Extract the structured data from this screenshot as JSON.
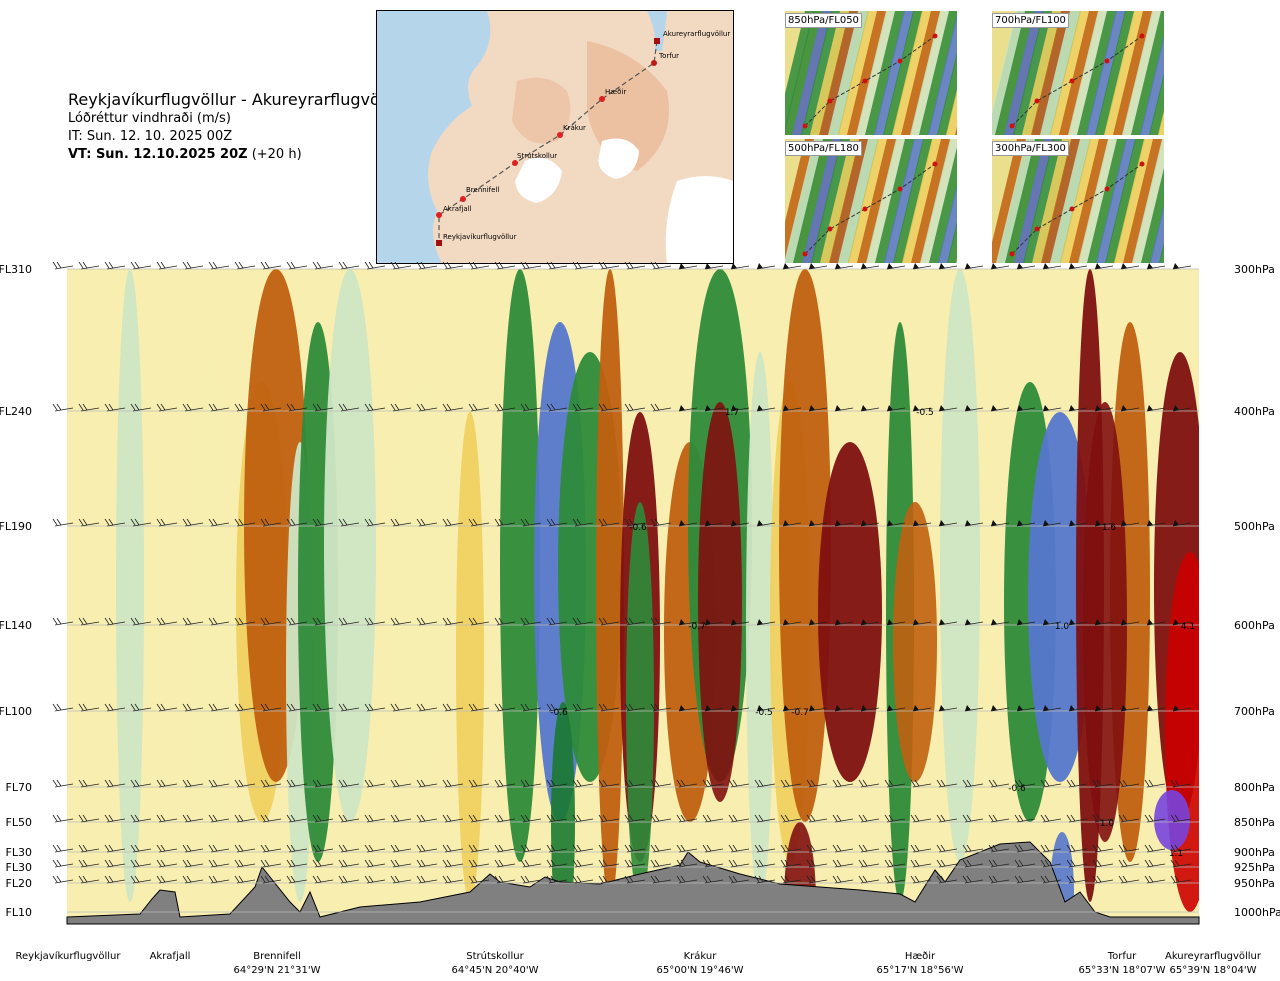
{
  "header": {
    "title": "Reykjavíkurflugvöllur - Akureyrarflugvöllur",
    "subtitle": "Lóðréttur vindhraði (m/s)",
    "it": "IT: Sun. 12. 10. 2025 00Z",
    "vt_bold": "VT: Sun. 12.10.2025 20Z",
    "vt_rest": " (+20 h)"
  },
  "map": {
    "points": [
      {
        "name": "Akureyrarflugvöllur"
      },
      {
        "name": "Torfur"
      },
      {
        "name": "Hæðir"
      },
      {
        "name": "Krákur"
      },
      {
        "name": "Strútskollur"
      },
      {
        "name": "Brennifell"
      },
      {
        "name": "Akrafjall"
      },
      {
        "name": "Reykjavíkurflugvöllur"
      }
    ]
  },
  "thumbnails": [
    {
      "label": "850hPa/FL050"
    },
    {
      "label": "700hPa/FL100"
    },
    {
      "label": "500hPa/FL180"
    },
    {
      "label": "300hPa/FL300"
    }
  ],
  "colors": {
    "strong_down": "#7f1010",
    "down": "#c06010",
    "weak_down": "#f0d060",
    "neutral": "#f7eeb0",
    "weak_up": "#cfe5c4",
    "up": "#2e8b3a",
    "strong_up": "#5577cc",
    "terrain": "#808080"
  },
  "chart_data": {
    "type": "heatmap",
    "title": "Reykjavíkurflugvöllur - Akureyrarflugvöllur",
    "variable": "Lóðréttur vindhraði (m/s)",
    "y_axis_left": [
      "FL310",
      "FL240",
      "FL190",
      "FL140",
      "FL100",
      "FL70",
      "FL50",
      "FL30",
      "FL30",
      "FL20",
      "FL10"
    ],
    "y_axis_right": [
      "300hPa",
      "400hPa",
      "500hPa",
      "600hPa",
      "700hPa",
      "800hPa",
      "850hPa",
      "900hPa",
      "925hPa",
      "950hPa",
      "1000hPa"
    ],
    "pressure_levels_hpa": [
      300,
      400,
      500,
      600,
      700,
      800,
      850,
      900,
      925,
      950,
      1000
    ],
    "x_labels": [
      {
        "name": "Reykjavíkurflugvöllur",
        "coord": ""
      },
      {
        "name": "Akrafjall",
        "coord": ""
      },
      {
        "name": "Brennifell",
        "coord": "64°29'N 21°31'W"
      },
      {
        "name": "Strútskollur",
        "coord": "64°45'N 20°40'W"
      },
      {
        "name": "Krákur",
        "coord": "65°00'N 19°46'W"
      },
      {
        "name": "Hæðir",
        "coord": "65°17'N 18°56'W"
      },
      {
        "name": "Torfur",
        "coord": "65°33'N 18°07'W"
      },
      {
        "name": "Akureyrarflugvöllur",
        "coord": "65°39'N 18°04'W"
      }
    ],
    "annotations": [
      {
        "text": "1.7",
        "level_hpa": 400
      },
      {
        "text": "-0.5",
        "level_hpa": 400
      },
      {
        "text": "-0.6",
        "level_hpa": 500
      },
      {
        "text": "1.6",
        "level_hpa": 500
      },
      {
        "text": "-0.7",
        "level_hpa": 600
      },
      {
        "text": "1.0",
        "level_hpa": 600
      },
      {
        "text": "4.1",
        "level_hpa": 600
      },
      {
        "text": "-0.6",
        "level_hpa": 700
      },
      {
        "text": "-0.5",
        "level_hpa": 700
      },
      {
        "text": "-0.7",
        "level_hpa": 700
      },
      {
        "text": "-0.6",
        "level_hpa": 800
      },
      {
        "text": "1.0",
        "level_hpa": 850
      },
      {
        "text": "1.1",
        "level_hpa": 900
      }
    ]
  }
}
